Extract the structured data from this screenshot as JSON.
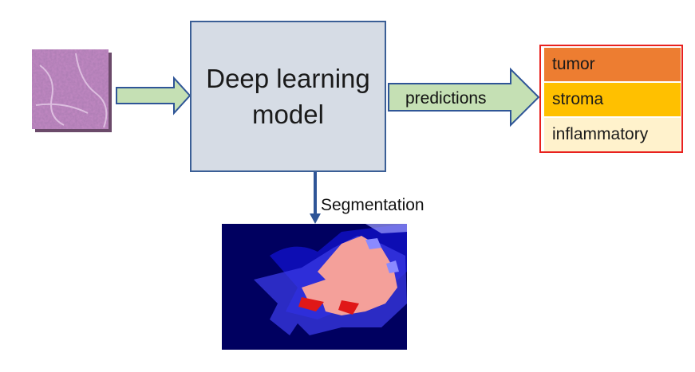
{
  "model": {
    "label_line1": "Deep learning",
    "label_line2": "model"
  },
  "edges": {
    "predictions_label": "predictions",
    "segmentation_label": "Segmentation"
  },
  "classes": [
    {
      "label": "tumor",
      "color": "#ed7d31"
    },
    {
      "label": "stroma",
      "color": "#ffc000"
    },
    {
      "label": "inflammatory",
      "color": "#fff2cc"
    }
  ],
  "colors": {
    "arrow_fill": "#c5e0b4",
    "arrow_stroke": "#2f5597",
    "model_fill": "#d6dce5",
    "class_border": "#e8211e",
    "seg_background": "#000060",
    "seg_tumor": "#f4a09a",
    "seg_high": "#e01818"
  },
  "icons": {
    "input": "tissue-histology-image-icon",
    "output": "segmentation-heatmap-icon"
  }
}
